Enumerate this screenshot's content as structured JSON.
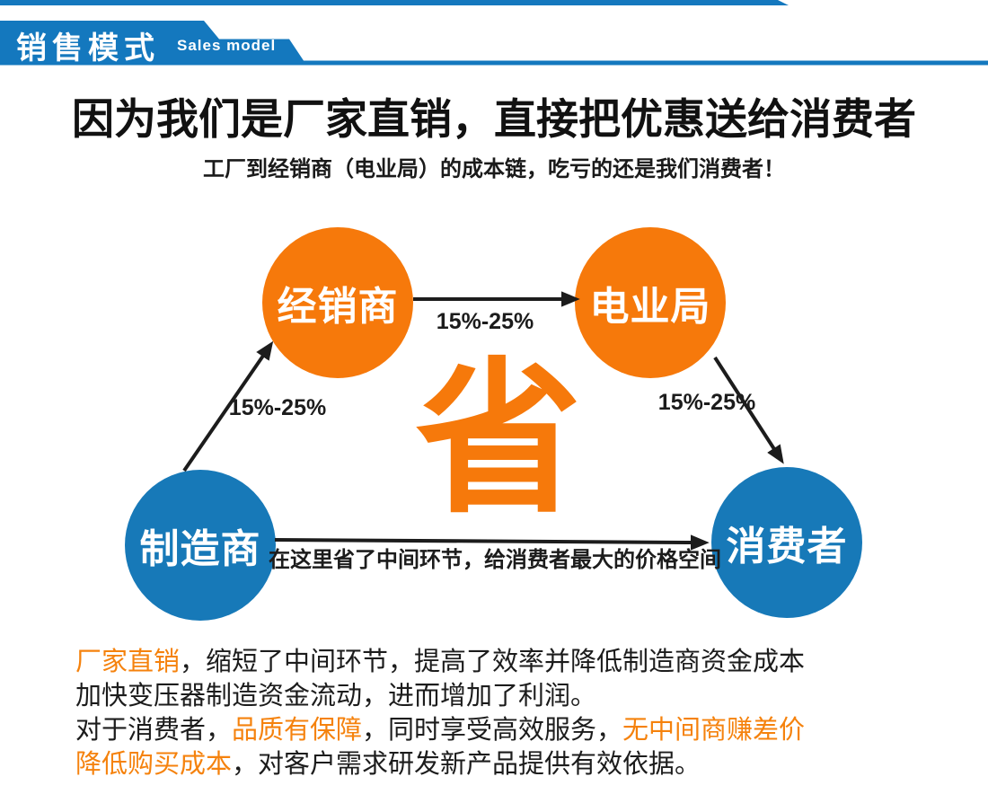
{
  "header": {
    "title_cn": "销售模式",
    "title_en": "Sales model"
  },
  "headline": {
    "title": "因为我们是厂家直销，直接把优惠送给消费者",
    "subtitle": "工厂到经销商（电业局）的成本链，吃亏的还是我们消费者！"
  },
  "diagram": {
    "nodes": [
      {
        "id": "dealer",
        "label": "经销商",
        "color": "#f6790b"
      },
      {
        "id": "power-bureau",
        "label": "电业局",
        "color": "#f6790b"
      },
      {
        "id": "manufacturer",
        "label": "制造商",
        "color": "#1779b8"
      },
      {
        "id": "consumer",
        "label": "消费者",
        "color": "#1779b8"
      }
    ],
    "save_character": "省",
    "arrow_labels": {
      "dealer_to_power": "15%-25%",
      "manufacturer_to_dealer": "15%-25%",
      "power_to_consumer": "15%-25%",
      "manufacturer_to_consumer": "在这里省了中间环节，给消费者最大的价格空间"
    }
  },
  "paragraphs": [
    {
      "lines": [
        [
          {
            "text": "厂家直销",
            "highlight": true
          },
          {
            "text": "，缩短了中间环节，提高了效率并降低制造商资金成本",
            "highlight": false
          }
        ],
        [
          {
            "text": "加快变压器制造资金流动，进而增加了利润。",
            "highlight": false
          }
        ]
      ]
    },
    {
      "lines": [
        [
          {
            "text": "对于消费者，",
            "highlight": false
          },
          {
            "text": "品质有保障",
            "highlight": true
          },
          {
            "text": "，同时享受高效服务，",
            "highlight": false
          },
          {
            "text": "无中间商赚差价",
            "highlight": true
          }
        ],
        [
          {
            "text": "降低购买成本",
            "highlight": true
          },
          {
            "text": "，对客户需求研发新产品提供有效依据。",
            "highlight": false
          }
        ]
      ]
    }
  ],
  "colors": {
    "banner_blue": "#1478be",
    "node_orange": "#f6790b",
    "node_blue": "#1779b8",
    "save_orange": "#f6790b",
    "highlight_orange": "#f5820d",
    "text_dark": "#1c1c1c"
  }
}
